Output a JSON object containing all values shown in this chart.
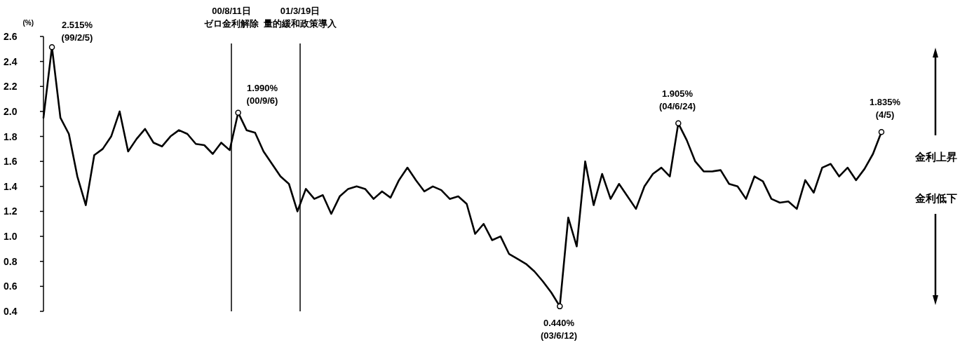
{
  "chart_data": {
    "type": "line",
    "ylabel": "(%)",
    "categories": [
      null,
      null,
      null,
      null,
      null,
      null,
      null,
      null,
      null,
      null,
      null,
      null,
      null,
      null,
      null,
      null,
      null,
      null,
      null,
      null,
      null,
      null,
      null,
      null,
      null,
      null,
      null,
      null,
      null,
      null,
      null,
      null,
      null,
      null,
      null,
      null,
      null,
      null,
      null,
      null,
      null,
      null,
      null,
      null,
      null,
      null,
      null,
      null,
      null,
      null,
      null,
      null,
      null,
      null,
      null,
      null,
      null,
      null,
      null,
      null,
      null,
      null,
      null,
      null,
      null,
      null,
      null,
      null,
      null,
      null,
      null,
      null,
      null,
      null,
      null,
      null,
      null,
      null,
      null,
      null,
      null,
      null,
      null,
      null,
      null,
      null,
      null,
      null,
      null,
      null,
      null,
      null,
      null,
      null,
      null,
      null,
      null,
      null,
      null,
      null
    ],
    "series": [
      {
        "color": "#000000",
        "values": [
          1.95,
          2.515,
          1.95,
          1.82,
          1.48,
          1.25,
          1.65,
          1.7,
          1.8,
          2.0,
          1.68,
          1.78,
          1.86,
          1.75,
          1.72,
          1.8,
          1.85,
          1.82,
          1.74,
          1.73,
          1.66,
          1.75,
          1.69,
          1.99,
          1.85,
          1.83,
          1.68,
          1.58,
          1.48,
          1.42,
          1.2,
          1.38,
          1.3,
          1.33,
          1.18,
          1.32,
          1.38,
          1.4,
          1.38,
          1.3,
          1.36,
          1.31,
          1.45,
          1.55,
          1.45,
          1.36,
          1.4,
          1.37,
          1.3,
          1.32,
          1.26,
          1.02,
          1.1,
          0.97,
          1.0,
          0.86,
          0.82,
          0.78,
          0.72,
          0.64,
          0.55,
          0.44,
          1.15,
          0.92,
          1.6,
          1.25,
          1.5,
          1.3,
          1.42,
          1.32,
          1.22,
          1.4,
          1.5,
          1.55,
          1.48,
          1.905,
          1.77,
          1.6,
          1.52,
          1.52,
          1.53,
          1.42,
          1.4,
          1.3,
          1.48,
          1.44,
          1.3,
          1.27,
          1.28,
          1.22,
          1.45,
          1.35,
          1.55,
          1.58,
          1.48,
          1.55,
          1.45,
          1.54,
          1.66,
          1.835
        ]
      }
    ],
    "ylim": [
      0.4,
      2.6
    ],
    "yticks": [
      0.4,
      0.6,
      0.8,
      {
        "value": 1,
        "label": "1.0"
      },
      1.2,
      1.4,
      1.6,
      1.8,
      {
        "value": 2,
        "label": "2.0"
      },
      2.2,
      2.4,
      2.6
    ],
    "marker": "none",
    "line_style": "solid",
    "tick_labels": "y",
    "annotations": [
      "2.515%\n(99/2/5)",
      "1.990%\n(00/9/6)",
      "0.440%\n(03/6/12)",
      "1.905%\n(04/6/24)",
      "1.835%\n(4/5)",
      "00/8/11日",
      "ゼロ金利解除",
      "01/3/19日",
      "量的緩和政策導入",
      "金利上昇",
      "金利低下"
    ]
  }
}
